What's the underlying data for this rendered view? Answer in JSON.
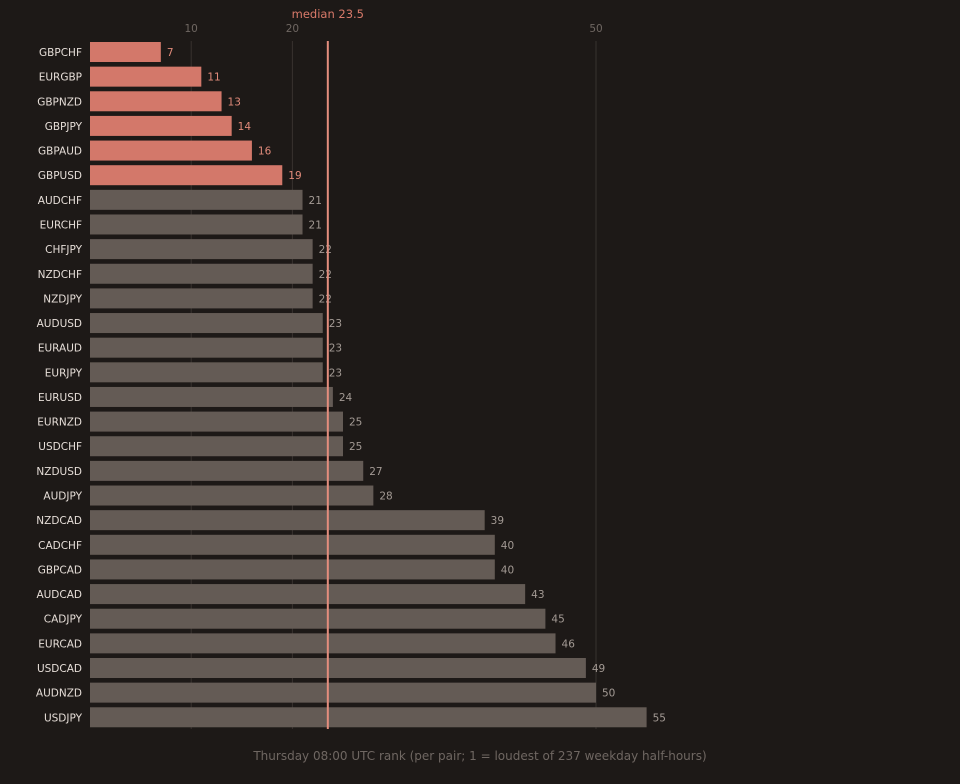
{
  "colors": {
    "background": "#1d1917",
    "highlight_bar": "#d3786a",
    "highlight_label": "#e08a7a",
    "normal_bar": "#645b55",
    "normal_label": "#a39a94",
    "median_line": "#e38d7d",
    "grid": "#38322f"
  },
  "chart_data": {
    "type": "bar",
    "orientation": "horizontal",
    "categories": [
      "GBPCHF",
      "EURGBP",
      "GBPNZD",
      "GBPJPY",
      "GBPAUD",
      "GBPUSD",
      "AUDCHF",
      "EURCHF",
      "CHFJPY",
      "NZDCHF",
      "NZDJPY",
      "AUDUSD",
      "EURAUD",
      "EURJPY",
      "EURUSD",
      "EURNZD",
      "USDCHF",
      "NZDUSD",
      "AUDJPY",
      "NZDCAD",
      "CADCHF",
      "GBPCAD",
      "AUDCAD",
      "CADJPY",
      "EURCAD",
      "USDCAD",
      "AUDNZD",
      "USDJPY"
    ],
    "values": [
      7,
      11,
      13,
      14,
      16,
      19,
      21,
      21,
      22,
      22,
      22,
      23,
      23,
      23,
      24,
      25,
      25,
      27,
      28,
      39,
      40,
      40,
      43,
      45,
      46,
      49,
      50,
      55
    ],
    "highlighted": [
      "GBPCHF",
      "EURGBP",
      "GBPNZD",
      "GBPJPY",
      "GBPAUD",
      "GBPUSD"
    ],
    "x_ticks": [
      10,
      20,
      50
    ],
    "xlim": [
      0,
      60
    ],
    "grid": true,
    "median": {
      "value": 23.5,
      "label": "median 23.5"
    },
    "caption": "Thursday 08:00 UTC rank (per pair; 1 = loudest of 237 weekday half-hours)"
  }
}
